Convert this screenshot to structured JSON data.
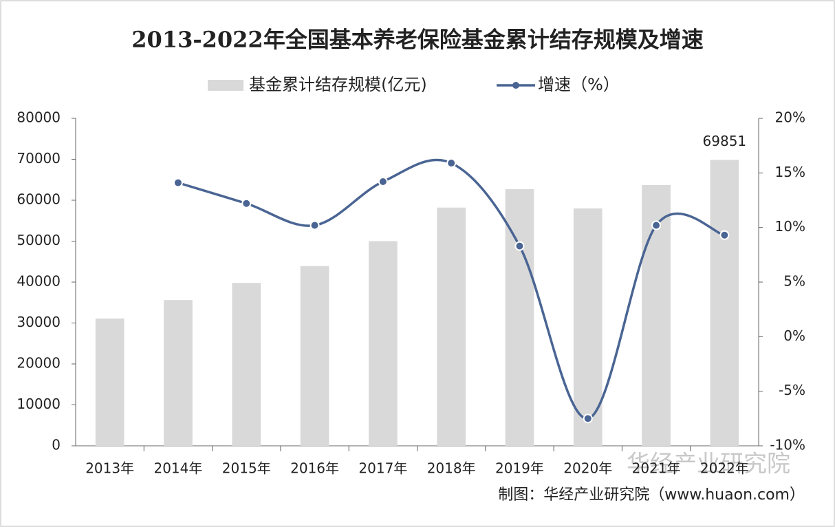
{
  "chart_data": {
    "type": "bar-line",
    "title": "2013-2022年全国基本养老保险基金累计结存规模及增速",
    "categories": [
      "2013年",
      "2014年",
      "2015年",
      "2016年",
      "2017年",
      "2018年",
      "2019年",
      "2020年",
      "2021年",
      "2022年"
    ],
    "series": [
      {
        "name": "基金累计结存规模(亿元)",
        "type": "bar",
        "color": "#d9d9d9",
        "values": [
          31100,
          35600,
          39800,
          43900,
          50000,
          58200,
          62700,
          58000,
          63700,
          69851
        ],
        "value_labels": [
          null,
          null,
          null,
          null,
          null,
          null,
          null,
          null,
          null,
          "69851"
        ]
      },
      {
        "name": "增速（%）",
        "type": "line",
        "axis": "y2",
        "color": "#4a6593",
        "values": [
          null,
          14.1,
          12.2,
          10.2,
          14.2,
          15.9,
          8.3,
          -7.5,
          10.2,
          9.3
        ]
      }
    ],
    "ylim": [
      0,
      80000
    ],
    "yticks": [
      0,
      10000,
      20000,
      30000,
      40000,
      50000,
      60000,
      70000,
      80000
    ],
    "y2lim": [
      -10,
      20
    ],
    "y2ticks": [
      {
        "value": -10,
        "label": "-10%"
      },
      {
        "value": -5,
        "label": "-5%"
      },
      {
        "value": 0,
        "label": "0%"
      },
      {
        "value": 5,
        "label": "5%"
      },
      {
        "value": 10,
        "label": "10%"
      },
      {
        "value": 15,
        "label": "15%"
      },
      {
        "value": 20,
        "label": "20%"
      }
    ],
    "legend": "top",
    "source": "制图：华经产业研究院（www.huaon.com）",
    "watermark": "华经产业研究院"
  }
}
